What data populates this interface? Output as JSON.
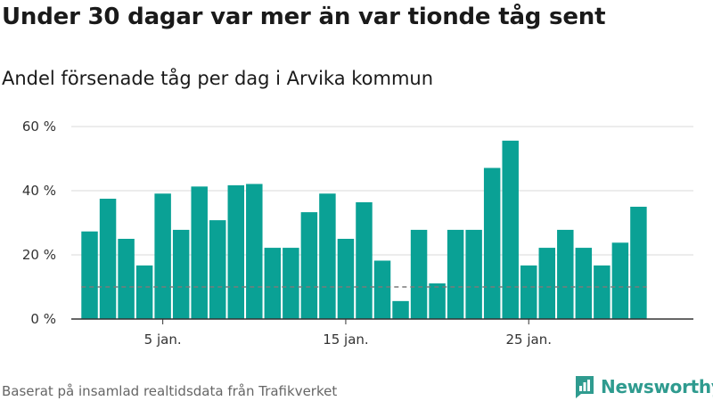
{
  "header": {
    "title": "Under 30 dagar var mer än var tionde tåg sent",
    "subtitle": "Andel försenade tåg per dag i Arvika kommun"
  },
  "footer": {
    "source": "Baserat på insamlad realtidsdata från Trafikverket",
    "brand": "Newsworthy",
    "brand_icon": "newsworthy-logo-icon"
  },
  "colors": {
    "bar": "#0aa195",
    "reference_line": "#7a7a7a",
    "grid": "#d9d9d9",
    "axis": "#333333",
    "brand": "#2f9b8f"
  },
  "chart_data": {
    "type": "bar",
    "x": [
      1,
      2,
      3,
      4,
      5,
      6,
      7,
      8,
      9,
      10,
      11,
      12,
      13,
      14,
      15,
      16,
      17,
      18,
      19,
      20,
      21,
      22,
      23,
      24,
      25,
      26,
      27,
      28,
      29,
      30,
      31
    ],
    "values": [
      27.3,
      37.5,
      25.0,
      16.7,
      39.1,
      27.8,
      41.3,
      30.8,
      41.7,
      42.1,
      22.2,
      22.2,
      33.3,
      39.1,
      25.0,
      36.4,
      18.2,
      5.6,
      27.8,
      11.1,
      27.8,
      27.8,
      47.1,
      55.6,
      16.7,
      22.2,
      27.8,
      22.2,
      16.7,
      23.8,
      35.0
    ],
    "reference_line": {
      "value": 10,
      "style": "dashed"
    },
    "ylim": [
      0,
      60
    ],
    "yticks": [
      0,
      20,
      40,
      60
    ],
    "ytick_labels": [
      "0 %",
      "20 %",
      "40 %",
      "60 %"
    ],
    "xticks": [
      5,
      15,
      25
    ],
    "xtick_labels": [
      "5 jan.",
      "15 jan.",
      "25 jan."
    ],
    "xlim": [
      0,
      34
    ],
    "grid": "horizontal",
    "title": "Under 30 dagar var mer än var tionde tåg sent",
    "subtitle": "Andel försenade tåg per dag i Arvika kommun",
    "xlabel": "",
    "ylabel": ""
  }
}
